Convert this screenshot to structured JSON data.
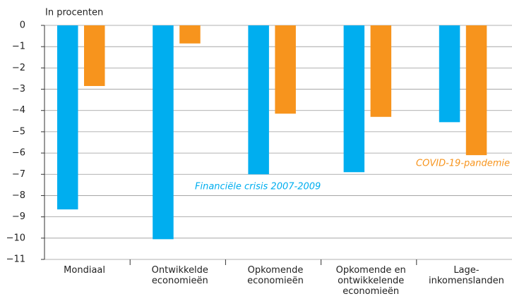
{
  "chart_data": {
    "type": "bar",
    "y_axis_label": "In procenten",
    "categories": [
      [
        "Mondiaal"
      ],
      [
        "Ontwikkelde",
        "economieën"
      ],
      [
        "Opkomende",
        "economieën"
      ],
      [
        "Opkomende en",
        "ontwikkelende",
        "economieën"
      ],
      [
        "Lage-",
        "inkomenslanden"
      ]
    ],
    "series": [
      {
        "name": "Financiële crisis 2007-2009",
        "color": "#00aeef",
        "values": [
          -8.65,
          -10.05,
          -7.0,
          -6.9,
          -4.55
        ]
      },
      {
        "name": "COVID-19-pandemie",
        "color": "#f7941d",
        "values": [
          -2.85,
          -0.85,
          -4.15,
          -4.3,
          -6.1
        ]
      }
    ],
    "ylim": [
      -11,
      0
    ],
    "yticks": [
      0,
      {
        "value": -1,
        "label": "−1"
      },
      {
        "value": -2,
        "label": "−2"
      },
      {
        "value": -3,
        "label": "−3"
      },
      {
        "value": -4,
        "label": "−4"
      },
      {
        "value": -5,
        "label": "−5"
      },
      {
        "value": -6,
        "label": "−6"
      },
      {
        "value": -7,
        "label": "−7"
      },
      {
        "value": -8,
        "label": "−8"
      },
      {
        "value": -9,
        "label": "−9"
      },
      {
        "value": -10,
        "label": "−10"
      },
      {
        "value": -11,
        "label": "−11"
      }
    ],
    "grid": true
  }
}
